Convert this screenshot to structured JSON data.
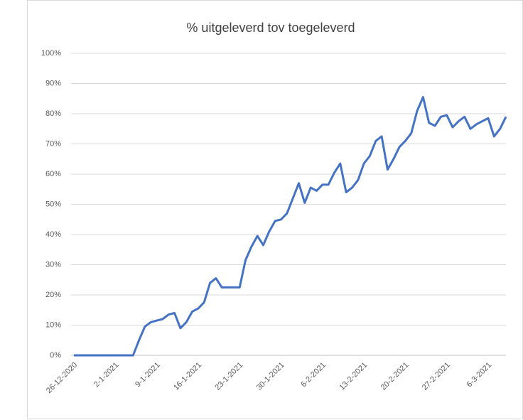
{
  "chart_data": {
    "type": "line",
    "title": "% uitgeleverd tov toegeleverd",
    "categories": [
      "26-12-2020",
      null,
      null,
      null,
      null,
      null,
      null,
      "2-1-2021",
      null,
      null,
      null,
      null,
      null,
      null,
      "9-1-2021",
      null,
      null,
      null,
      null,
      null,
      null,
      "16-1-2021",
      null,
      null,
      null,
      null,
      null,
      null,
      "23-1-2021",
      null,
      null,
      null,
      null,
      null,
      null,
      "30-1-2021",
      null,
      null,
      null,
      null,
      null,
      null,
      "6-2-2021",
      null,
      null,
      null,
      null,
      null,
      null,
      "13-2-2021",
      null,
      null,
      null,
      null,
      null,
      null,
      "20-2-2021",
      null,
      null,
      null,
      null,
      null,
      null,
      "27-2-2021",
      null,
      null,
      null,
      null,
      null,
      null,
      "6-3-2021",
      null,
      null,
      null
    ],
    "series": [
      {
        "name": "% uitgeleverd tov toegeleverd",
        "color": "#4472c4",
        "values": [
          0,
          0,
          0,
          0,
          0,
          0,
          0,
          0,
          0,
          0,
          0,
          5,
          9.5,
          11,
          11.5,
          12,
          13.5,
          14,
          9,
          11,
          14.5,
          15.5,
          17.5,
          24,
          25.5,
          22.5,
          22.5,
          22.5,
          22.5,
          31.5,
          36,
          39.5,
          36.5,
          41,
          44.5,
          45,
          47,
          52,
          57,
          50.5,
          55.5,
          54.5,
          56.5,
          56.5,
          60.5,
          63.5,
          54,
          55.5,
          58,
          63.5,
          66,
          71,
          72.5,
          61.5,
          65,
          69,
          71,
          73.5,
          81,
          85.5,
          77,
          76,
          79,
          79.5,
          75.5,
          77.5,
          79,
          75,
          76.5,
          77.5,
          78.5,
          72.5,
          75,
          79
        ]
      }
    ],
    "ylim": [
      0,
      100
    ],
    "yticks": [
      {
        "value": 0,
        "label": "0%"
      },
      {
        "value": 10,
        "label": "10%"
      },
      {
        "value": 20,
        "label": "20%"
      },
      {
        "value": 30,
        "label": "30%"
      },
      {
        "value": 40,
        "label": "40%"
      },
      {
        "value": 50,
        "label": "50%"
      },
      {
        "value": 60,
        "label": "60%"
      },
      {
        "value": 70,
        "label": "70%"
      },
      {
        "value": 80,
        "label": "80%"
      },
      {
        "value": 90,
        "label": "90%"
      },
      {
        "value": 100,
        "label": "100%"
      }
    ],
    "grid": true
  }
}
